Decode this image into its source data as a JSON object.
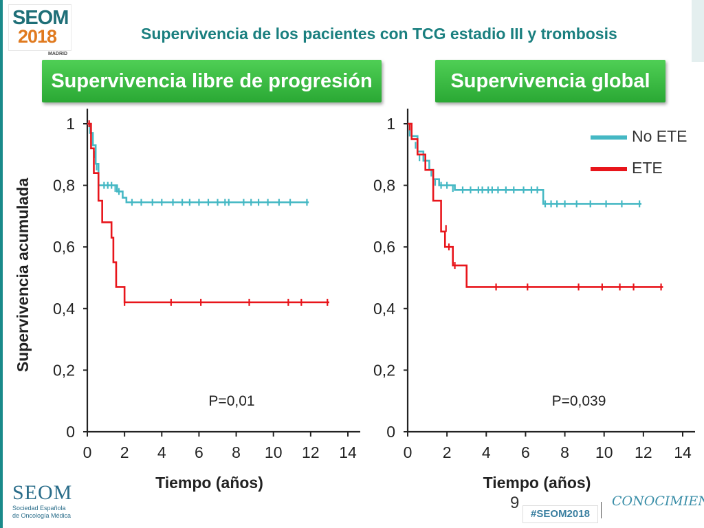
{
  "header": {
    "title": "Supervivencia de los pacientes con TCG estadio III y trombosis",
    "logo": {
      "name": "SEOM",
      "year": "2018",
      "city": "MADRID"
    }
  },
  "panels": [
    {
      "button_label": "Supervivencia libre de progresión"
    },
    {
      "button_label": "Supervivencia global"
    }
  ],
  "footer": {
    "logo_name": "SEOM",
    "logo_line1": "Sociedad Española",
    "logo_line2": "de Oncología Médica",
    "page_number": "9",
    "hashtag": "#SEOM2018",
    "tagline": "CONOCIMIENTO"
  },
  "chart_data": [
    {
      "type": "line",
      "title": "Supervivencia libre de progresión",
      "xlabel": "Tiempo (años)",
      "ylabel": "Supervivencia acumulada",
      "xlim": [
        0,
        14
      ],
      "ylim": [
        0,
        1
      ],
      "xticks": [
        "0",
        "2",
        "4",
        "6",
        "8",
        "10",
        "12",
        "14"
      ],
      "yticks": [
        "0",
        "0,2",
        "0,4",
        "0,6",
        "0,8",
        "1"
      ],
      "annotation": "P=0,01",
      "series": [
        {
          "name": "No ETE",
          "color": "#45b8c4",
          "step": true,
          "points": [
            [
              0,
              1
            ],
            [
              0.15,
              0.97
            ],
            [
              0.3,
              0.93
            ],
            [
              0.45,
              0.87
            ],
            [
              0.6,
              0.8
            ],
            [
              1.6,
              0.78
            ],
            [
              1.9,
              0.76
            ],
            [
              2.1,
              0.745
            ],
            [
              11.9,
              0.745
            ]
          ],
          "censored": [
            [
              0.4,
              0.9
            ],
            [
              0.5,
              0.86
            ],
            [
              0.9,
              0.8
            ],
            [
              1.1,
              0.8
            ],
            [
              1.3,
              0.8
            ],
            [
              1.5,
              0.79
            ],
            [
              1.7,
              0.78
            ],
            [
              2.4,
              0.745
            ],
            [
              2.9,
              0.745
            ],
            [
              3.5,
              0.745
            ],
            [
              4.0,
              0.745
            ],
            [
              4.6,
              0.745
            ],
            [
              5.1,
              0.745
            ],
            [
              5.5,
              0.745
            ],
            [
              6.0,
              0.745
            ],
            [
              6.5,
              0.745
            ],
            [
              7.0,
              0.745
            ],
            [
              7.4,
              0.745
            ],
            [
              7.6,
              0.745
            ],
            [
              8.4,
              0.745
            ],
            [
              8.8,
              0.745
            ],
            [
              9.2,
              0.745
            ],
            [
              9.7,
              0.745
            ],
            [
              10.3,
              0.745
            ],
            [
              10.9,
              0.745
            ],
            [
              11.8,
              0.745
            ]
          ]
        },
        {
          "name": "ETE",
          "color": "#e8151b",
          "step": true,
          "points": [
            [
              0,
              1
            ],
            [
              0.2,
              0.92
            ],
            [
              0.35,
              0.84
            ],
            [
              0.6,
              0.75
            ],
            [
              0.8,
              0.68
            ],
            [
              1.3,
              0.63
            ],
            [
              1.4,
              0.55
            ],
            [
              1.55,
              0.47
            ],
            [
              2.0,
              0.42
            ],
            [
              13,
              0.42
            ]
          ],
          "censored": [
            [
              0.1,
              1.0
            ],
            [
              2.0,
              0.42
            ],
            [
              4.5,
              0.42
            ],
            [
              6.1,
              0.42
            ],
            [
              8.7,
              0.42
            ],
            [
              10.8,
              0.42
            ],
            [
              11.5,
              0.42
            ],
            [
              12.9,
              0.42
            ]
          ]
        }
      ]
    },
    {
      "type": "line",
      "title": "Supervivencia global",
      "xlabel": "Tiempo (años)",
      "ylabel": "",
      "xlim": [
        0,
        14
      ],
      "ylim": [
        0,
        1
      ],
      "xticks": [
        "0",
        "2",
        "4",
        "6",
        "8",
        "10",
        "12",
        "14"
      ],
      "yticks": [
        "0",
        "0,2",
        "0,4",
        "0,6",
        "0,8",
        "1"
      ],
      "annotation": "P=0,039",
      "legend": [
        "No ETE",
        "ETE"
      ],
      "series": [
        {
          "name": "No ETE",
          "color": "#45b8c4",
          "step": true,
          "points": [
            [
              0,
              1
            ],
            [
              0.2,
              0.96
            ],
            [
              0.5,
              0.91
            ],
            [
              0.8,
              0.88
            ],
            [
              1.1,
              0.85
            ],
            [
              1.3,
              0.82
            ],
            [
              1.6,
              0.8
            ],
            [
              2.4,
              0.785
            ],
            [
              6.8,
              0.785
            ],
            [
              6.9,
              0.74
            ],
            [
              11.9,
              0.74
            ]
          ],
          "censored": [
            [
              0.1,
              0.97
            ],
            [
              0.4,
              0.93
            ],
            [
              0.6,
              0.89
            ],
            [
              1.2,
              0.84
            ],
            [
              1.4,
              0.81
            ],
            [
              1.7,
              0.8
            ],
            [
              2.0,
              0.8
            ],
            [
              2.3,
              0.79
            ],
            [
              2.8,
              0.785
            ],
            [
              3.2,
              0.785
            ],
            [
              3.6,
              0.785
            ],
            [
              3.8,
              0.785
            ],
            [
              4.1,
              0.785
            ],
            [
              4.3,
              0.785
            ],
            [
              4.6,
              0.785
            ],
            [
              5.0,
              0.785
            ],
            [
              5.4,
              0.785
            ],
            [
              5.9,
              0.785
            ],
            [
              6.3,
              0.785
            ],
            [
              6.6,
              0.785
            ],
            [
              7.0,
              0.74
            ],
            [
              7.3,
              0.74
            ],
            [
              7.6,
              0.74
            ],
            [
              8.0,
              0.74
            ],
            [
              8.6,
              0.74
            ],
            [
              9.3,
              0.74
            ],
            [
              10.1,
              0.74
            ],
            [
              10.9,
              0.74
            ],
            [
              11.8,
              0.74
            ]
          ]
        },
        {
          "name": "ETE",
          "color": "#e8151b",
          "step": true,
          "points": [
            [
              0,
              1
            ],
            [
              0.2,
              0.95
            ],
            [
              0.5,
              0.9
            ],
            [
              0.9,
              0.85
            ],
            [
              1.3,
              0.75
            ],
            [
              1.7,
              0.65
            ],
            [
              1.9,
              0.6
            ],
            [
              2.3,
              0.54
            ],
            [
              3.0,
              0.47
            ],
            [
              13,
              0.47
            ]
          ],
          "censored": [
            [
              0.1,
              0.99
            ],
            [
              1.95,
              0.66
            ],
            [
              2.1,
              0.6
            ],
            [
              2.4,
              0.54
            ],
            [
              4.5,
              0.47
            ],
            [
              6.1,
              0.47
            ],
            [
              8.7,
              0.47
            ],
            [
              9.9,
              0.47
            ],
            [
              10.8,
              0.47
            ],
            [
              11.5,
              0.47
            ],
            [
              12.9,
              0.47
            ]
          ]
        }
      ]
    }
  ]
}
